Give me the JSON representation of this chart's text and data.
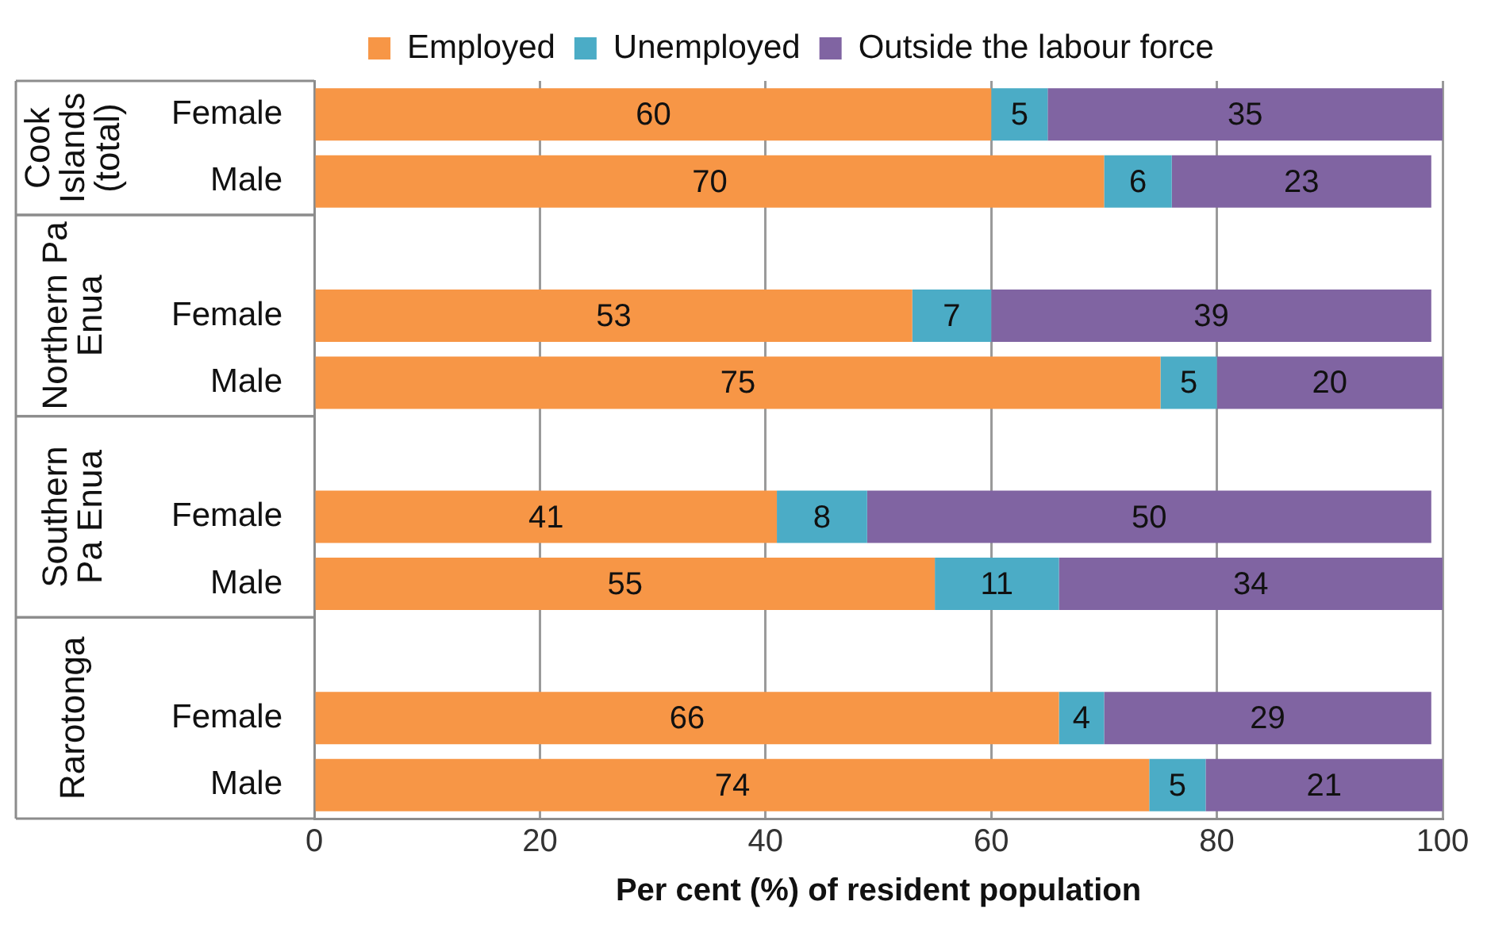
{
  "chart_data": {
    "type": "bar",
    "orientation": "horizontal",
    "stacked": true,
    "categories": [
      "Female",
      "Male",
      null,
      "Female",
      "Male",
      null,
      "Female",
      "Male",
      null,
      "Female",
      "Male"
    ],
    "series": [
      {
        "name": "Employed",
        "color": "#f79646",
        "values": [
          60,
          70,
          null,
          53,
          75,
          null,
          41,
          55,
          null,
          66,
          74
        ]
      },
      {
        "name": "Unemployed",
        "color": "#4bacc6",
        "values": [
          5,
          6,
          null,
          7,
          5,
          null,
          8,
          11,
          null,
          4,
          5
        ]
      },
      {
        "name": "Outside the labour force",
        "color": "#8064a2",
        "values": [
          35,
          23,
          null,
          39,
          20,
          null,
          50,
          34,
          null,
          29,
          21
        ]
      }
    ],
    "xlabel": "Per cent (%) of resident population",
    "xlim": [
      0,
      100
    ],
    "xticks": [
      0,
      20,
      40,
      60,
      80,
      100
    ],
    "annotations": [
      "Cook Islands (total)",
      "Northern Pa Enua",
      "Southern Pa Enua",
      "Rarotonga"
    ],
    "grid": "x",
    "legend": "top",
    "data_labels": true
  }
}
